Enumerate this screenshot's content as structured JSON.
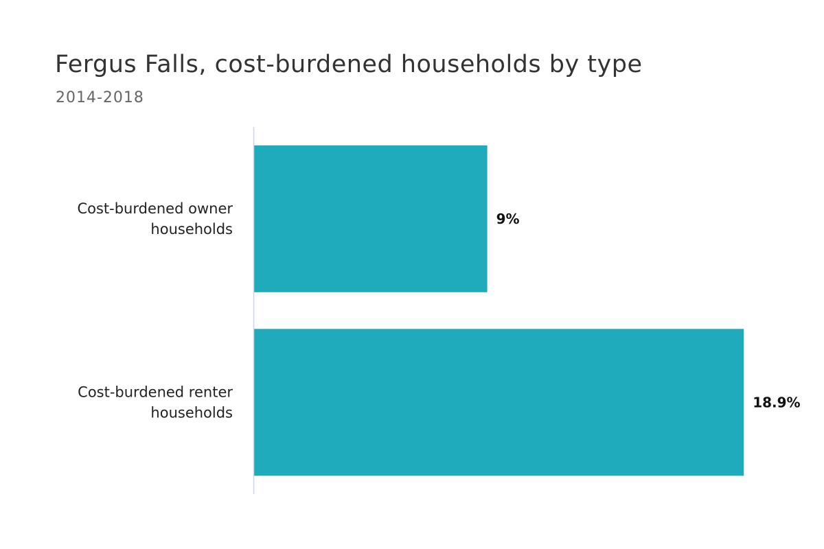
{
  "chart_data": {
    "type": "bar",
    "orientation": "horizontal",
    "title": "Fergus Falls, cost-burdened households by type",
    "subtitle": "2014-2018",
    "categories": [
      [
        "Cost-burdened owner",
        "households"
      ],
      [
        "Cost-burdened renter",
        "households"
      ]
    ],
    "values": [
      9,
      18.9
    ],
    "value_labels": [
      "9%",
      "18.9%"
    ],
    "xlim": [
      0,
      19
    ],
    "grid": false,
    "legend": "none",
    "colors": {
      "bar": "#1fabbc",
      "axis": "#ccd6eb"
    }
  }
}
